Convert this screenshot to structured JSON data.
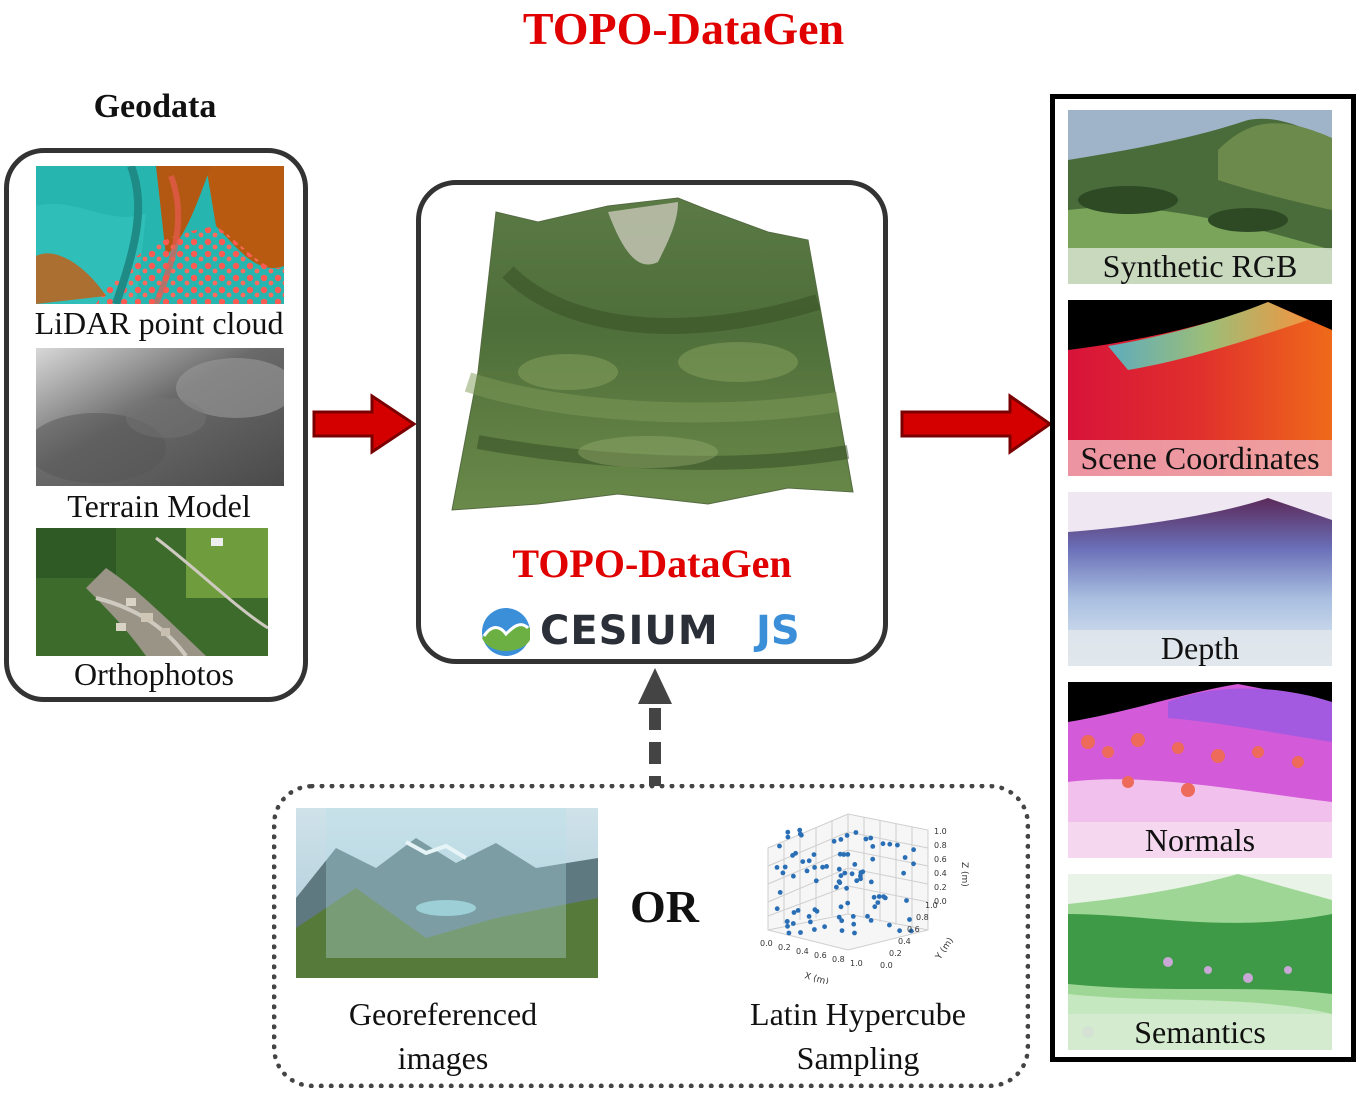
{
  "title": "TOPO-DataGen",
  "geodata": {
    "heading": "Geodata",
    "lidar_label": "LiDAR point cloud",
    "terrain_label": "Terrain Model",
    "ortho_label": "Orthophotos"
  },
  "center": {
    "label": "TOPO-DataGen",
    "logo_text_main": "CESIUM",
    "logo_text_js": "JS"
  },
  "inputs": {
    "georef_label_line1": "Georeferenced",
    "georef_label_line2": "images",
    "or_text": "OR",
    "lhs_label_line1": "Latin Hypercube",
    "lhs_label_line2": "Sampling",
    "lhs_plot": {
      "x_axis_label": "X (m)",
      "y_axis_label": "Y (m)",
      "z_axis_label": "Z (m)",
      "x_ticks": [
        "0.0",
        "0.2",
        "0.4",
        "0.6",
        "0.8",
        "1.0"
      ],
      "y_ticks": [
        "0.0",
        "0.2",
        "0.4",
        "0.6",
        "0.8",
        "1.0"
      ],
      "z_ticks": [
        "0.0",
        "0.2",
        "0.4",
        "0.6",
        "0.8",
        "1.0"
      ]
    }
  },
  "outputs": {
    "rgb_label": "Synthetic RGB",
    "scene_label": "Scene Coordinates",
    "depth_label": "Depth",
    "normals_label": "Normals",
    "semantics_label": "Semantics"
  },
  "colors": {
    "title_red": "#e00000",
    "arrow_red": "#d40000",
    "cesium_blue": "#3b8fd9",
    "cesium_green": "#6cb043",
    "point_blue": "#2a6fb5"
  }
}
